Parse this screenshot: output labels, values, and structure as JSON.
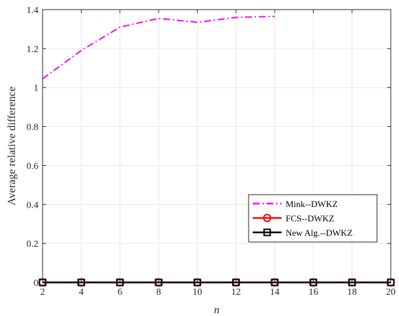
{
  "chart_data": {
    "type": "line",
    "xlabel": "n",
    "ylabel": "Average relative difference",
    "xlim": [
      2,
      20
    ],
    "ylim": [
      0,
      1.4
    ],
    "xticks": [
      "2",
      "4",
      "6",
      "8",
      "10",
      "12",
      "14",
      "16",
      "18",
      "20"
    ],
    "yticks": [
      "0",
      "0.2",
      "0.4",
      "0.6",
      "0.8",
      "1",
      "1.2",
      "1.4"
    ],
    "grid": true,
    "legend_position": "lower-right",
    "series": [
      {
        "name": "Mink--DWKZ",
        "color": "#ff00ff",
        "line_style": "dash-dot",
        "marker": "none",
        "x": [
          2,
          4,
          6,
          8,
          10,
          12,
          14
        ],
        "y": [
          1.045,
          1.19,
          1.31,
          1.355,
          1.335,
          1.36,
          1.365
        ]
      },
      {
        "name": "FCS--DWKZ",
        "color": "#ff0000",
        "line_style": "solid",
        "marker": "circle",
        "x": [
          2,
          4,
          6,
          8,
          10,
          12,
          14,
          16,
          18,
          20
        ],
        "y": [
          0,
          0,
          0,
          0,
          0,
          0,
          0,
          0,
          0,
          0
        ]
      },
      {
        "name": "New Alg.--DWKZ",
        "color": "#000000",
        "line_style": "solid",
        "marker": "square",
        "x": [
          2,
          4,
          6,
          8,
          10,
          12,
          14,
          16,
          18,
          20
        ],
        "y": [
          0,
          0,
          0,
          0,
          0,
          0,
          0,
          0,
          0,
          0
        ]
      }
    ]
  }
}
